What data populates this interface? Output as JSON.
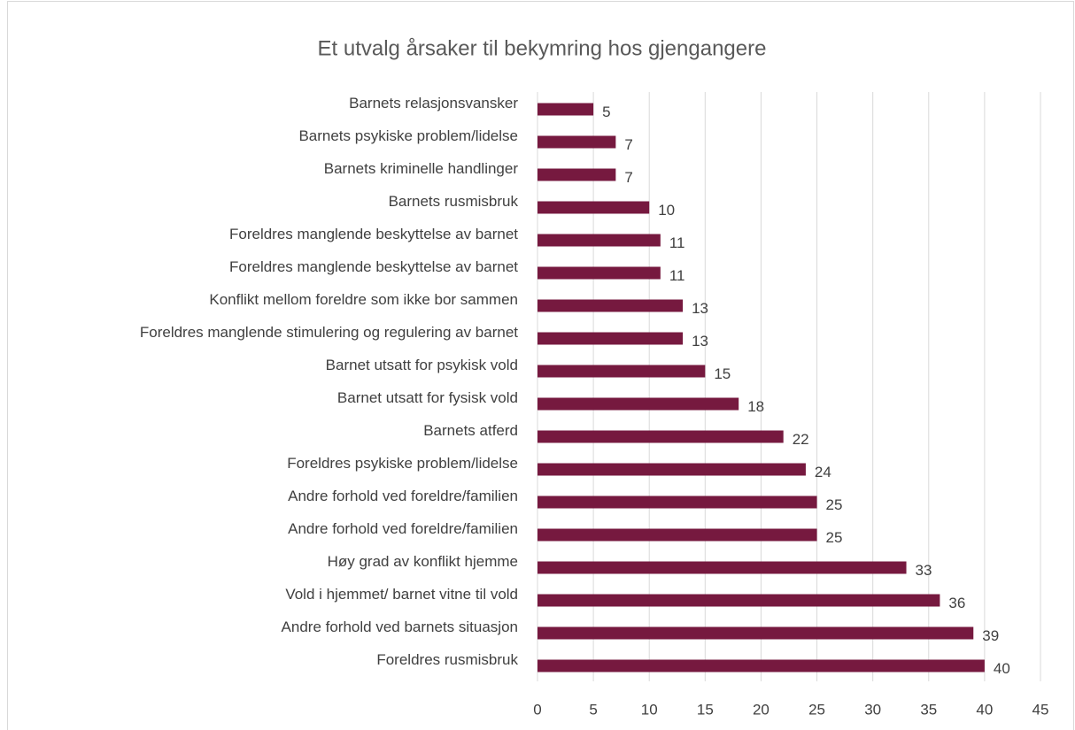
{
  "chart_data": {
    "type": "bar",
    "orientation": "horizontal",
    "title": "Et utvalg årsaker til bekymring hos gjengangere",
    "categories": [
      "Barnets relasjonsvansker",
      "Barnets psykiske problem/lidelse",
      "Barnets kriminelle handlinger",
      "Barnets rusmisbruk",
      "Foreldres manglende beskyttelse av barnet",
      "Foreldres manglende beskyttelse av barnet",
      "Konflikt mellom foreldre som ikke bor sammen",
      "Foreldres manglende stimulering og regulering av barnet",
      "Barnet utsatt for psykisk vold",
      "Barnet utsatt for fysisk vold",
      "Barnets atferd",
      "Foreldres psykiske problem/lidelse",
      "Andre forhold ved foreldre/familien",
      "Andre forhold ved foreldre/familien",
      "Høy grad av konflikt hjemme",
      "Vold i hjemmet/ barnet vitne til vold",
      "Andre forhold ved barnets situasjon",
      "Foreldres rusmisbruk"
    ],
    "values": [
      5,
      7,
      7,
      10,
      11,
      11,
      13,
      13,
      15,
      18,
      22,
      24,
      25,
      25,
      33,
      36,
      39,
      40
    ],
    "color": "#76193f",
    "xlim": [
      0,
      45
    ],
    "xticks": [
      0,
      5,
      10,
      15,
      20,
      25,
      30,
      35,
      40,
      45
    ],
    "grid": true
  }
}
